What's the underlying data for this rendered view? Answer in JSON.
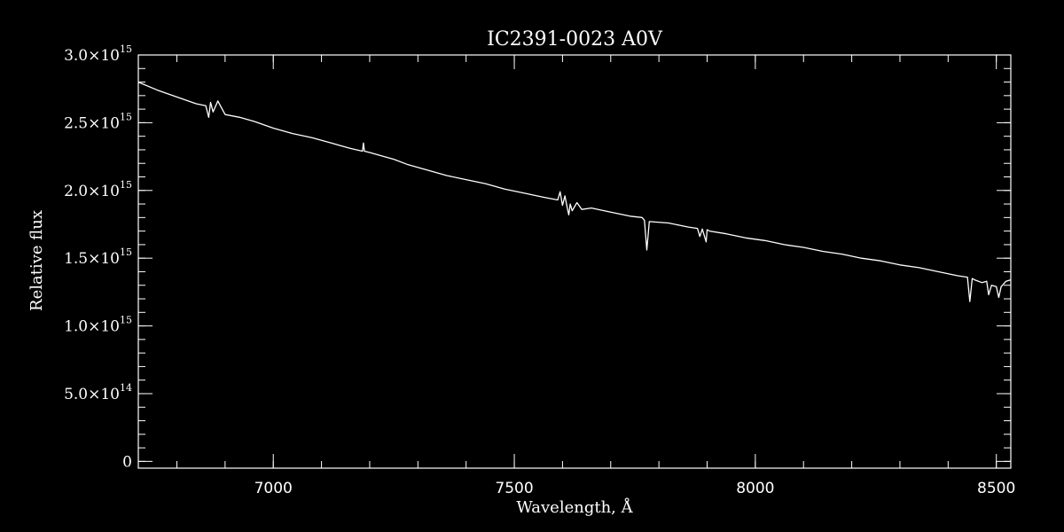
{
  "chart_data": {
    "type": "line",
    "title": "IC2391-0023   A0V",
    "xlabel": "Wavelength, Å",
    "ylabel": "Relative flux",
    "xlim": [
      6720,
      8530
    ],
    "ylim": [
      -50000000000000,
      3000000000000000
    ],
    "x_ticks": [
      {
        "value": 7000,
        "label": "7000"
      },
      {
        "value": 7500,
        "label": "7500"
      },
      {
        "value": 8000,
        "label": "8000"
      },
      {
        "value": 8500,
        "label": "8500"
      }
    ],
    "y_ticks": [
      {
        "value": 0,
        "mantissa": "0",
        "exp": ""
      },
      {
        "value": 500000000000000,
        "mantissa": "5.0×10",
        "exp": "14"
      },
      {
        "value": 1000000000000000,
        "mantissa": "1.0×10",
        "exp": "15"
      },
      {
        "value": 1500000000000000,
        "mantissa": "1.5×10",
        "exp": "15"
      },
      {
        "value": 2000000000000000,
        "mantissa": "2.0×10",
        "exp": "15"
      },
      {
        "value": 2500000000000000,
        "mantissa": "2.5×10",
        "exp": "15"
      },
      {
        "value": 3000000000000000,
        "mantissa": "3.0×10",
        "exp": "15"
      }
    ],
    "x_minor_step": 100,
    "y_minor_step": 100000000000000,
    "grid": false,
    "series": [
      {
        "line_color": "#ffffff",
        "x": [
          6720,
          6760,
          6800,
          6840,
          6860,
          6866,
          6870,
          6875,
          6885,
          6900,
          6930,
          6960,
          7000,
          7040,
          7080,
          7120,
          7160,
          7185,
          7187,
          7189,
          7200,
          7230,
          7250,
          7280,
          7320,
          7360,
          7400,
          7440,
          7480,
          7520,
          7560,
          7590,
          7595,
          7600,
          7605,
          7610,
          7613,
          7616,
          7620,
          7630,
          7640,
          7660,
          7700,
          7740,
          7765,
          7770,
          7775,
          7780,
          7820,
          7860,
          7880,
          7885,
          7890,
          7898,
          7900,
          7905,
          7940,
          7980,
          8020,
          8060,
          8100,
          8140,
          8180,
          8220,
          8260,
          8300,
          8340,
          8380,
          8420,
          8440,
          8445,
          8450,
          8455,
          8470,
          8480,
          8484,
          8490,
          8500,
          8505,
          8510,
          8520,
          8530
        ],
        "y": [
          2800000000000000,
          2740000000000000,
          2690000000000000,
          2640000000000000,
          2625000000000000,
          2540000000000000,
          2650000000000000,
          2580000000000000,
          2660000000000000,
          2560000000000000,
          2540000000000000,
          2510000000000000,
          2460000000000000,
          2420000000000000,
          2390000000000000,
          2350000000000000,
          2310000000000000,
          2290000000000000,
          2350000000000000,
          2290000000000000,
          2280000000000000,
          2250000000000000,
          2230000000000000,
          2190000000000000,
          2150000000000000,
          2110000000000000,
          2080000000000000,
          2050000000000000,
          2010000000000000,
          1980000000000000,
          1950000000000000,
          1930000000000000,
          1990000000000000,
          1890000000000000,
          1960000000000000,
          1870000000000000,
          1820000000000000,
          1900000000000000,
          1850000000000000,
          1910000000000000,
          1860000000000000,
          1870000000000000,
          1840000000000000,
          1810000000000000,
          1800000000000000,
          1780000000000000,
          1560000000000000,
          1770000000000000,
          1760000000000000,
          1730000000000000,
          1720000000000000,
          1660000000000000,
          1715000000000000,
          1620000000000000,
          1710000000000000,
          1700000000000000,
          1680000000000000,
          1650000000000000,
          1630000000000000,
          1600000000000000,
          1580000000000000,
          1550000000000000,
          1530000000000000,
          1500000000000000,
          1480000000000000,
          1450000000000000,
          1430000000000000,
          1400000000000000,
          1370000000000000,
          1360000000000000,
          1180000000000000,
          1350000000000000,
          1340000000000000,
          1320000000000000,
          1330000000000000,
          1230000000000000,
          1300000000000000,
          1290000000000000,
          1210000000000000,
          1290000000000000,
          1330000000000000,
          1340000000000000
        ]
      }
    ]
  },
  "colors": {
    "background": "#000000",
    "foreground": "#ffffff"
  }
}
